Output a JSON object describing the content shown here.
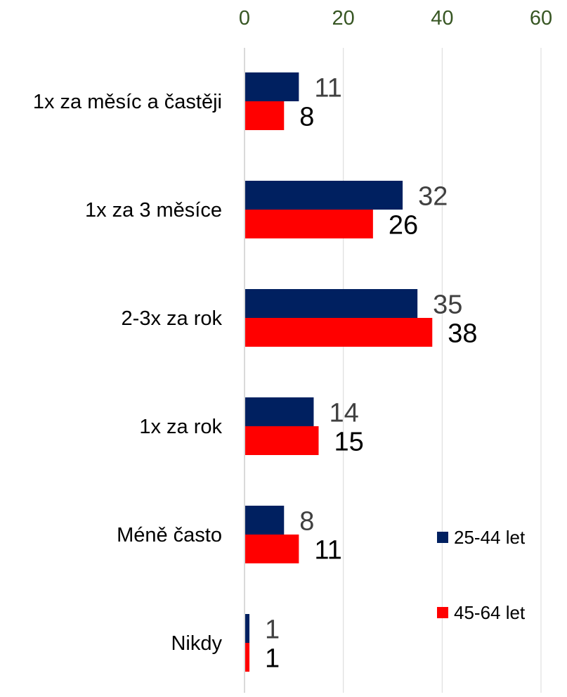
{
  "chart_data": {
    "type": "bar",
    "orientation": "horizontal",
    "categories": [
      "1x za měsíc a častěji",
      "1x za 3 měsíce",
      "2-3x za rok",
      "1x za rok",
      "Méně často",
      "Nikdy"
    ],
    "series": [
      {
        "name": "25-44 let",
        "values": [
          11,
          32,
          35,
          14,
          8,
          1
        ],
        "color": "#002060",
        "label_color": "#404040"
      },
      {
        "name": "45-64 let",
        "values": [
          8,
          26,
          38,
          15,
          11,
          1
        ],
        "color": "#ff0000",
        "label_color": "#000000"
      }
    ],
    "x_ticks": [
      "0",
      "20",
      "40",
      "60"
    ],
    "xlim": [
      0,
      60
    ],
    "x_axis_position": "top",
    "tick_label_color": "#375623",
    "grid": true,
    "grid_color": "#d9d9d9",
    "legend_position": "bottom-right",
    "data_labels": true
  }
}
